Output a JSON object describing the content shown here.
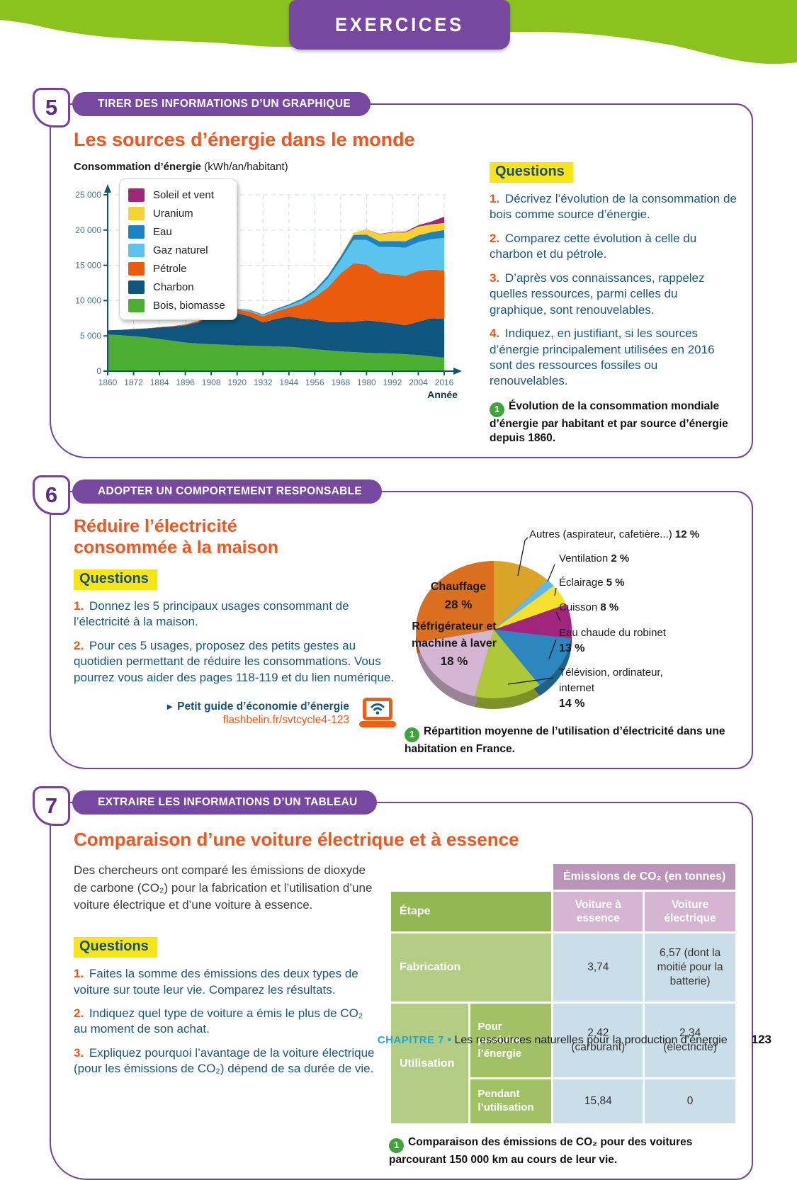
{
  "banner": {
    "title": "EXERCICES"
  },
  "footer": {
    "chapter": "CHAPITRE 7",
    "separator": "•",
    "title": "Les ressources naturelles pour la production d’énergie",
    "page": "123"
  },
  "ex5": {
    "number": "5",
    "skill": "TIRER DES INFORMATIONS D’UN GRAPHIQUE",
    "title": "Les sources d’énergie dans le monde",
    "questions_label": "Questions",
    "questions": [
      {
        "num": "1.",
        "text": "Décrivez l’évolution de la consommation de bois comme source d’énergie."
      },
      {
        "num": "2.",
        "text": "Comparez cette évolution à celle du charbon et du pétrole."
      },
      {
        "num": "3.",
        "text": "D’après vos connaissances, rappelez quelles ressources, parmi celles du graphique, sont renouvelables."
      },
      {
        "num": "4.",
        "text": "Indiquez, en justifiant, si les sources d’énergie principalement utilisées en 2016 sont des ressources fossiles ou renouvelables."
      }
    ],
    "caption": {
      "num": "1",
      "text": "Évolution de la consommation mondiale d’énergie par habitant et par source d’énergie depuis 1860."
    }
  },
  "ex6": {
    "number": "6",
    "skill": "ADOPTER UN COMPORTEMENT RESPONSABLE",
    "title_lines": "Réduire l’électricité\nconsommée à la maison",
    "questions_label": "Questions",
    "questions": [
      {
        "num": "1.",
        "text": "Donnez les 5 principaux usages consommant de l’électricité à la maison."
      },
      {
        "num": "2.",
        "text": "Pour ces 5 usages, proposez des petits gestes au quotidien permettant de réduire les consommations. Vous pourrez vous aider des pages 118-119 et du lien numérique."
      }
    ],
    "link": {
      "arrow": "►",
      "label": "Petit guide d’économie d’énergie",
      "url": "flashbelin.fr/svtcycle4-123",
      "icon": "laptop-wifi-icon"
    },
    "caption": {
      "num": "1",
      "text": "Répartition moyenne de l’utilisation d’électricité dans une habitation en France."
    }
  },
  "ex7": {
    "number": "7",
    "skill": "EXTRAIRE LES INFORMATIONS D’UN TABLEAU",
    "title": "Comparaison d’une voiture électrique et à essence",
    "intro": "Des chercheurs ont comparé les émissions de dioxyde de carbone (CO₂) pour la fabrication et l’utilisation d’une voiture électrique et d’une voiture à essence.",
    "questions_label": "Questions",
    "questions": [
      {
        "num": "1.",
        "text": "Faites la somme des émissions des deux types de voiture sur toute leur vie. Comparez les résultats."
      },
      {
        "num": "2.",
        "text": "Indiquez quel type de voiture a émis le plus de CO₂ au moment de son achat."
      },
      {
        "num": "3.",
        "text": "Expliquez pourquoi l’avantage de la voiture électrique (pour les émissions de CO₂) dépend de sa durée de vie."
      }
    ],
    "table": {
      "header_group": "Émissions de CO₂ (en tonnes)",
      "col_headers": [
        "Étape",
        "Voiture à essence",
        "Voiture électrique"
      ],
      "rows": [
        {
          "stage": "Fabrication",
          "sub": null,
          "essence": "3,74",
          "electrique": "6,57 (dont la moitié pour la batterie)"
        },
        {
          "stage": "Utilisation",
          "sub": "Pour produire l’énergie",
          "essence": "2,42 (carburant)",
          "electrique": "2,34 (électricité)"
        },
        {
          "stage": null,
          "sub": "Pendant l’utilisation",
          "essence": "15,84",
          "electrique": "0"
        }
      ]
    },
    "caption": {
      "num": "1",
      "text": "Comparaison des émissions de CO₂ pour des voitures parcourant 150 000 km au cours de leur vie."
    }
  },
  "chart_data": [
    {
      "type": "area",
      "title": "Consommation d’énergie",
      "title_unit": "(kWh/an/habitant)",
      "xlabel": "Année",
      "ylim": [
        0,
        25000
      ],
      "yticks": [
        0,
        5000,
        10000,
        15000,
        20000,
        25000
      ],
      "ytick_labels": [
        "0",
        "5 000",
        "10 000",
        "15 000",
        "20 000",
        "25 000"
      ],
      "xticks": [
        1860,
        1872,
        1884,
        1896,
        1908,
        1920,
        1932,
        1944,
        1956,
        1968,
        1980,
        1992,
        2004,
        2016
      ],
      "grid": "dashed",
      "legend_position": "top-left, top-to-bottom reverse stack order",
      "x": [
        1860,
        1866,
        1872,
        1878,
        1884,
        1890,
        1896,
        1902,
        1908,
        1914,
        1920,
        1926,
        1932,
        1938,
        1944,
        1950,
        1956,
        1962,
        1968,
        1974,
        1980,
        1986,
        1992,
        1998,
        2004,
        2010,
        2016
      ],
      "series": [
        {
          "name": "Bois, biomasse",
          "color": "#4CAF32",
          "values": [
            5200,
            5100,
            4950,
            4800,
            4550,
            4300,
            4050,
            3900,
            3800,
            3750,
            3650,
            3600,
            3550,
            3500,
            3450,
            3300,
            3100,
            2950,
            2800,
            2700,
            2600,
            2550,
            2500,
            2400,
            2300,
            2100,
            1900
          ]
        },
        {
          "name": "Charbon",
          "color": "#0F567E",
          "values": [
            600,
            750,
            1000,
            1250,
            1650,
            2000,
            2450,
            3000,
            4150,
            4700,
            4550,
            4150,
            3350,
            3900,
            4300,
            4150,
            4200,
            4000,
            4150,
            4300,
            4600,
            4450,
            4300,
            4100,
            4700,
            5400,
            5500
          ]
        },
        {
          "name": "Pétrole",
          "color": "#EA5B0C",
          "values": [
            0,
            10,
            20,
            30,
            50,
            80,
            120,
            180,
            280,
            350,
            500,
            700,
            850,
            1050,
            1250,
            2100,
            3200,
            4900,
            6900,
            8300,
            7900,
            6900,
            6900,
            7000,
            7200,
            6900,
            6900
          ]
        },
        {
          "name": "Gaz naturel",
          "color": "#5BC4EE",
          "values": [
            0,
            0,
            0,
            0,
            0,
            20,
            30,
            40,
            60,
            80,
            100,
            150,
            180,
            220,
            280,
            450,
            700,
            1250,
            1900,
            3300,
            3500,
            3700,
            3900,
            4000,
            4100,
            4300,
            4600
          ]
        },
        {
          "name": "Eau",
          "color": "#1B83C4",
          "values": [
            0,
            0,
            0,
            0,
            0,
            0,
            0,
            0,
            30,
            50,
            60,
            80,
            120,
            150,
            180,
            250,
            320,
            420,
            520,
            700,
            750,
            800,
            850,
            900,
            950,
            1000,
            1100
          ]
        },
        {
          "name": "Uranium",
          "color": "#F7D232",
          "values": [
            0,
            0,
            0,
            0,
            0,
            0,
            0,
            0,
            0,
            0,
            0,
            0,
            0,
            0,
            0,
            0,
            0,
            30,
            60,
            300,
            700,
            1000,
            1200,
            1250,
            1250,
            1100,
            1000
          ]
        },
        {
          "name": "Soleil et vent",
          "color": "#9E2A77",
          "values": [
            0,
            0,
            0,
            0,
            0,
            0,
            0,
            0,
            0,
            0,
            0,
            0,
            0,
            0,
            0,
            0,
            0,
            0,
            0,
            0,
            30,
            50,
            80,
            120,
            200,
            400,
            900
          ]
        }
      ]
    },
    {
      "type": "pie",
      "style": "3d",
      "start_angle_deg": 0,
      "direction": "clockwise",
      "slices": [
        {
          "label": "Autres (aspirateur, cafetière...)",
          "pct_label": "12 %",
          "value": 12,
          "color": "#D9A427",
          "placement": "outside",
          "pct_inline": true
        },
        {
          "label": "Ventilation",
          "pct_label": "2 %",
          "value": 2,
          "color": "#64B8E4",
          "placement": "outside",
          "pct_inline": true
        },
        {
          "label": "Éclairage",
          "pct_label": "5 %",
          "value": 5,
          "color": "#F5E02D",
          "placement": "outside",
          "pct_inline": true
        },
        {
          "label": "Cuisson",
          "pct_label": "8 %",
          "value": 8,
          "color": "#A1257C",
          "placement": "outside",
          "pct_inline": true
        },
        {
          "label": "Eau chaude du robinet",
          "pct_label": "13 %",
          "value": 13,
          "color": "#2E86BE",
          "placement": "outside",
          "pct_inline": false
        },
        {
          "label": "Télévision, ordinateur, internet",
          "label_lines": [
            "Télévision, ordinateur,",
            "internet"
          ],
          "pct_label": "14 %",
          "value": 14,
          "color": "#AFC838",
          "placement": "outside",
          "pct_inline": false
        },
        {
          "label": "Réfrigérateur et machine à laver",
          "label_lines": [
            "Réfrigérateur et",
            "machine à laver"
          ],
          "pct_label": "18 %",
          "value": 18,
          "color": "#D5B6D2",
          "placement": "inside"
        },
        {
          "label": "Chauffage",
          "label_lines": [
            "Chauffage"
          ],
          "pct_label": "28 %",
          "value": 28,
          "color": "#D96F1F",
          "placement": "inside"
        }
      ]
    }
  ]
}
